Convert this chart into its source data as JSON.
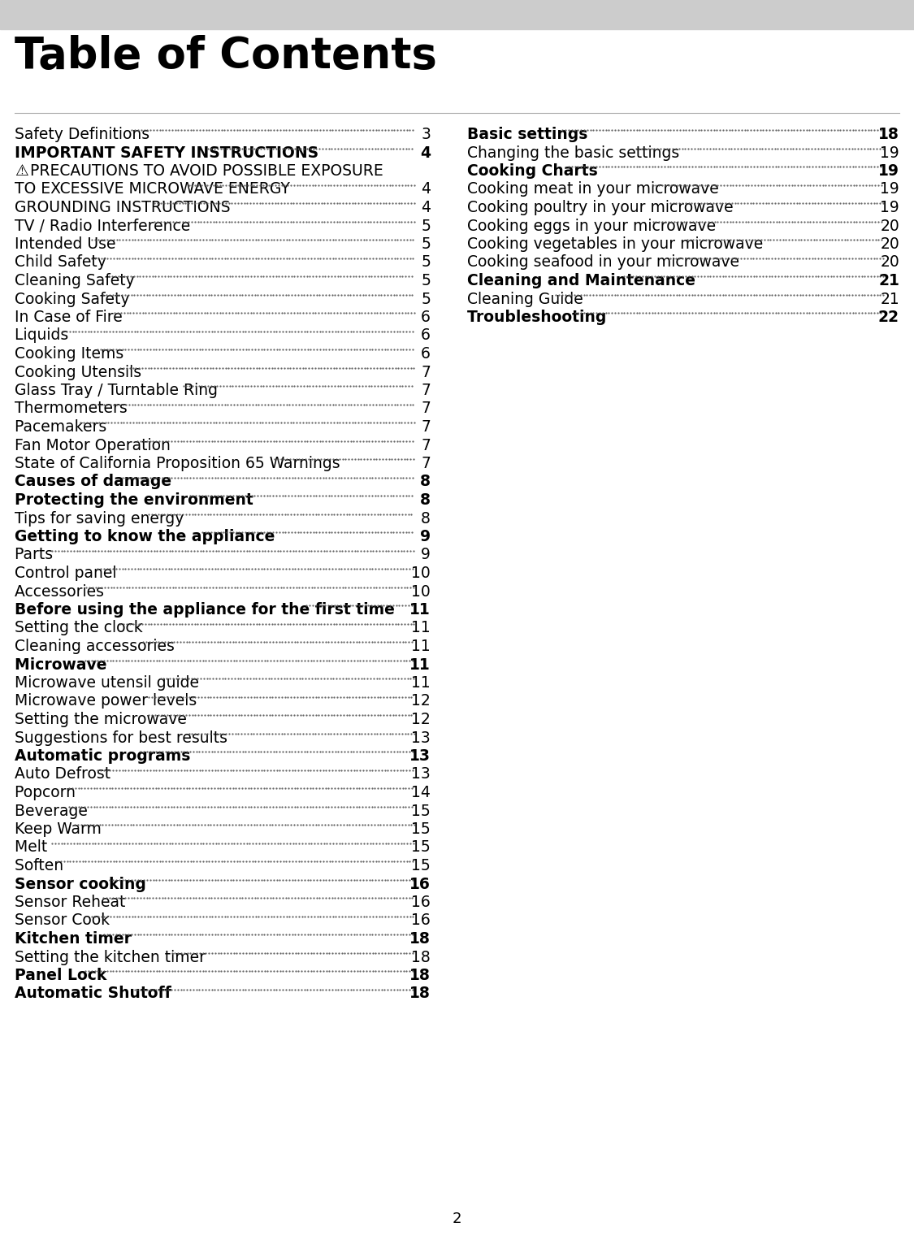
{
  "title": "Table of Contents",
  "bg_color": "#ffffff",
  "header_bg": "#cccccc",
  "text_color": "#000000",
  "dot_color": "#555555",
  "page_num": "2",
  "left_entries": [
    {
      "text": "Safety Definitions  ",
      "page": "3",
      "bold": false,
      "warn": false,
      "ml": false
    },
    {
      "text": "IMPORTANT SAFETY INSTRUCTIONS  ",
      "page": "4",
      "bold": true,
      "warn": false,
      "ml": false
    },
    {
      "text": "PRECAUTIONS TO AVOID POSSIBLE EXPOSURE\nTO EXCESSIVE MICROWAVE ENERGY ",
      "page": "4",
      "bold": false,
      "warn": true,
      "ml": true
    },
    {
      "text": "GROUNDING INSTRUCTIONS  ",
      "page": "4",
      "bold": false,
      "warn": false,
      "ml": false
    },
    {
      "text": "TV / Radio Interference ",
      "page": "5",
      "bold": false,
      "warn": false,
      "ml": false
    },
    {
      "text": "Intended Use ",
      "page": "5",
      "bold": false,
      "warn": false,
      "ml": false
    },
    {
      "text": "Child Safety ",
      "page": "5",
      "bold": false,
      "warn": false,
      "ml": false
    },
    {
      "text": "Cleaning Safety ",
      "page": "5",
      "bold": false,
      "warn": false,
      "ml": false
    },
    {
      "text": "Cooking Safety ",
      "page": "5",
      "bold": false,
      "warn": false,
      "ml": false
    },
    {
      "text": "In Case of Fire  ",
      "page": "6",
      "bold": false,
      "warn": false,
      "ml": false
    },
    {
      "text": "Liquids ",
      "page": "6",
      "bold": false,
      "warn": false,
      "ml": false
    },
    {
      "text": "Cooking Items ",
      "page": "6",
      "bold": false,
      "warn": false,
      "ml": false
    },
    {
      "text": "Cooking Utensils  ",
      "page": "7",
      "bold": false,
      "warn": false,
      "ml": false
    },
    {
      "text": "Glass Tray / Turntable Ring  ",
      "page": "7",
      "bold": false,
      "warn": false,
      "ml": false
    },
    {
      "text": "Thermometers ",
      "page": "7",
      "bold": false,
      "warn": false,
      "ml": false
    },
    {
      "text": "Pacemakers ",
      "page": "7",
      "bold": false,
      "warn": false,
      "ml": false
    },
    {
      "text": "Fan Motor Operation  ",
      "page": "7",
      "bold": false,
      "warn": false,
      "ml": false
    },
    {
      "text": "State of California Proposition 65 Warnings  ",
      "page": "7",
      "bold": false,
      "warn": false,
      "ml": false
    },
    {
      "text": "Causes of damage ",
      "page": "8",
      "bold": true,
      "warn": false,
      "ml": false
    },
    {
      "text": "Protecting the environment  ",
      "page": "8",
      "bold": true,
      "warn": false,
      "ml": false
    },
    {
      "text": "Tips for saving energy ",
      "page": "8",
      "bold": false,
      "warn": false,
      "ml": false
    },
    {
      "text": "Getting to know the appliance ",
      "page": "9",
      "bold": true,
      "warn": false,
      "ml": false
    },
    {
      "text": "Parts ",
      "page": "9",
      "bold": false,
      "warn": false,
      "ml": false
    },
    {
      "text": "Control panel ",
      "page": "10",
      "bold": false,
      "warn": false,
      "ml": false
    },
    {
      "text": "Accessories ",
      "page": "10",
      "bold": false,
      "warn": false,
      "ml": false
    },
    {
      "text": "Before using the appliance for the first time  ",
      "page": "11",
      "bold": true,
      "warn": false,
      "ml": false
    },
    {
      "text": "Setting the clock ",
      "page": "11",
      "bold": false,
      "warn": false,
      "ml": false
    },
    {
      "text": "Cleaning accessories  ",
      "page": "11",
      "bold": false,
      "warn": false,
      "ml": false
    },
    {
      "text": "Microwave  ",
      "page": "11",
      "bold": true,
      "warn": false,
      "ml": false
    },
    {
      "text": "Microwave utensil guide  ",
      "page": "11",
      "bold": false,
      "warn": false,
      "ml": false
    },
    {
      "text": "Microwave power levels ",
      "page": "12",
      "bold": false,
      "warn": false,
      "ml": false
    },
    {
      "text": "Setting the microwave  ",
      "page": "12",
      "bold": false,
      "warn": false,
      "ml": false
    },
    {
      "text": "Suggestions for best results  ",
      "page": "13",
      "bold": false,
      "warn": false,
      "ml": false
    },
    {
      "text": "Automatic programs  ",
      "page": "13",
      "bold": true,
      "warn": false,
      "ml": false
    },
    {
      "text": "Auto Defrost  ",
      "page": "13",
      "bold": false,
      "warn": false,
      "ml": false
    },
    {
      "text": "Popcorn  ",
      "page": "14",
      "bold": false,
      "warn": false,
      "ml": false
    },
    {
      "text": "Beverage ",
      "page": "15",
      "bold": false,
      "warn": false,
      "ml": false
    },
    {
      "text": "Keep Warm ",
      "page": "15",
      "bold": false,
      "warn": false,
      "ml": false
    },
    {
      "text": "Melt  ",
      "page": "15",
      "bold": false,
      "warn": false,
      "ml": false
    },
    {
      "text": "Soften ",
      "page": "15",
      "bold": false,
      "warn": false,
      "ml": false
    },
    {
      "text": "Sensor cooking ",
      "page": "16",
      "bold": true,
      "warn": false,
      "ml": false
    },
    {
      "text": "Sensor Reheat  ",
      "page": "16",
      "bold": false,
      "warn": false,
      "ml": false
    },
    {
      "text": "Sensor Cook  ",
      "page": "16",
      "bold": false,
      "warn": false,
      "ml": false
    },
    {
      "text": "Kitchen timer ",
      "page": "18",
      "bold": true,
      "warn": false,
      "ml": false
    },
    {
      "text": "Setting the kitchen timer  ",
      "page": "18",
      "bold": false,
      "warn": false,
      "ml": false
    },
    {
      "text": "Panel Lock ",
      "page": "18",
      "bold": true,
      "warn": false,
      "ml": false
    },
    {
      "text": "Automatic Shutoff  ",
      "page": "18",
      "bold": true,
      "warn": false,
      "ml": false
    }
  ],
  "right_entries": [
    {
      "text": "Basic settings ",
      "page": "18",
      "bold": true,
      "warn": false,
      "ml": false
    },
    {
      "text": "Changing the basic settings  ",
      "page": "19",
      "bold": false,
      "warn": false,
      "ml": false
    },
    {
      "text": "Cooking Charts  ",
      "page": "19",
      "bold": true,
      "warn": false,
      "ml": false
    },
    {
      "text": "Cooking meat in your microwave  ",
      "page": "19",
      "bold": false,
      "warn": false,
      "ml": false
    },
    {
      "text": "Cooking poultry in your microwave  ",
      "page": "19",
      "bold": false,
      "warn": false,
      "ml": false
    },
    {
      "text": "Cooking eggs in your microwave  ",
      "page": "20",
      "bold": false,
      "warn": false,
      "ml": false
    },
    {
      "text": "Cooking vegetables in your microwave  ",
      "page": "20",
      "bold": false,
      "warn": false,
      "ml": false
    },
    {
      "text": "Cooking seafood in your microwave  ",
      "page": "20",
      "bold": false,
      "warn": false,
      "ml": false
    },
    {
      "text": "Cleaning and Maintenance ",
      "page": "21",
      "bold": true,
      "warn": false,
      "ml": false
    },
    {
      "text": "Cleaning Guide ",
      "page": "21",
      "bold": false,
      "warn": false,
      "ml": false
    },
    {
      "text": "Troubleshooting  ",
      "page": "22",
      "bold": true,
      "warn": false,
      "ml": false
    }
  ]
}
